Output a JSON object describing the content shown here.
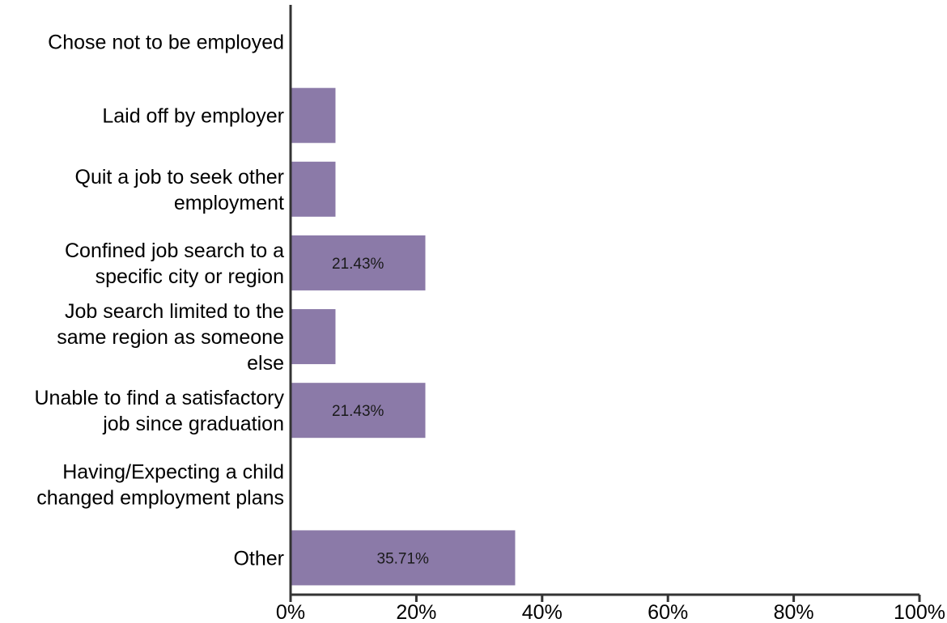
{
  "chart_data": {
    "type": "bar",
    "orientation": "horizontal",
    "bar_color": "#8b7aa8",
    "categories": [
      [
        "Chose not to be employed"
      ],
      [
        "Laid off by employer"
      ],
      [
        "Quit a job to seek other",
        "employment"
      ],
      [
        "Confined job search to a",
        "specific city or region"
      ],
      [
        "Job search limited to the",
        "same region as someone",
        "else"
      ],
      [
        "Unable to find a satisfactory",
        "job since graduation"
      ],
      [
        "Having/Expecting a child",
        "changed employment plans"
      ],
      [
        "Other"
      ]
    ],
    "values": [
      0,
      7.14,
      7.14,
      21.43,
      7.14,
      21.43,
      0,
      35.71
    ],
    "data_labels": [
      "",
      "",
      "",
      "21.43%",
      "",
      "21.43%",
      "",
      "35.71%"
    ],
    "xlim": [
      0,
      100
    ],
    "x_ticks": [
      "0%",
      "20%",
      "40%",
      "60%",
      "80%",
      "100%"
    ],
    "grid": false
  }
}
